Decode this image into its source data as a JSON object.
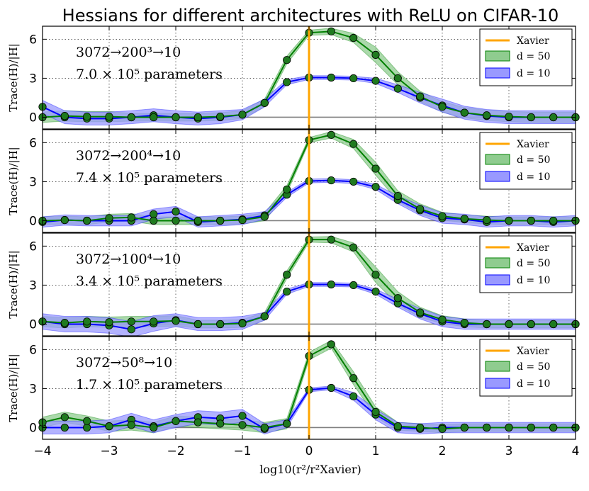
{
  "chart_data": {
    "type": "line",
    "title": "Hessians for different architectures with ReLU on CIFAR-10",
    "xlabel": "log10(r²/r²Xavier)",
    "ylabel": "Trace(H)/|H|",
    "xlim": [
      -4,
      4
    ],
    "ylim": [
      -0.9,
      7
    ],
    "xticks": [
      "−4",
      "−3",
      "−2",
      "−1",
      "0",
      "1",
      "2",
      "3",
      "4"
    ],
    "yticks": [
      "0",
      "3",
      "6"
    ],
    "grid": true,
    "legend_position": "top-right",
    "legend": {
      "xavier": "Xavier",
      "d50": "d = 50",
      "d10": "d = 10"
    },
    "colors": {
      "d50_line": "#008000",
      "d50_fill": "#8fcc8f",
      "d50_marker": "#1f7a1f",
      "d10_line": "#0000ff",
      "d10_fill": "#9999ff",
      "xavier": "#ffa500",
      "zero_line": "#808080"
    },
    "x": [
      -4,
      -3.667,
      -3.333,
      -3,
      -2.667,
      -2.333,
      -2,
      -1.667,
      -1.333,
      -1,
      -0.667,
      -0.333,
      0,
      0.333,
      0.667,
      1,
      1.333,
      1.667,
      2,
      2.333,
      2.667,
      3,
      3.333,
      3.667,
      4
    ],
    "panels": [
      {
        "arch": "3072→200³→10",
        "params": "7.0 × 10⁵ parameters",
        "series": [
          {
            "name": "d = 50",
            "values": [
              0,
              0.1,
              0.05,
              0.05,
              0,
              0,
              0,
              0,
              0.05,
              0.2,
              1.1,
              4.4,
              6.5,
              6.6,
              6.1,
              4.8,
              3.0,
              1.6,
              0.8,
              0.35,
              0.15,
              0.05,
              0,
              0,
              0
            ],
            "band": [
              0.4,
              0.4,
              0.4,
              0.4,
              0.3,
              0.3,
              0.3,
              0.3,
              0.3,
              0.3,
              0.3,
              0.3,
              0.2,
              0.25,
              0.35,
              0.6,
              0.5,
              0.4,
              0.4,
              0.4,
              0.4,
              0.4,
              0.4,
              0.4,
              0.4
            ]
          },
          {
            "name": "d = 10",
            "values": [
              0.8,
              0,
              -0.1,
              -0.1,
              0,
              0.15,
              0,
              -0.1,
              0,
              0.2,
              1.1,
              2.7,
              3.05,
              3.05,
              3.0,
              2.8,
              2.2,
              1.5,
              0.9,
              0.35,
              0.1,
              0,
              0,
              0,
              0
            ],
            "band": [
              0.5,
              0.5,
              0.5,
              0.5,
              0.5,
              0.5,
              0.5,
              0.5,
              0.5,
              0.4,
              0.3,
              0.2,
              0.15,
              0.15,
              0.15,
              0.2,
              0.3,
              0.4,
              0.5,
              0.5,
              0.5,
              0.5,
              0.5,
              0.5,
              0.5
            ]
          }
        ]
      },
      {
        "arch": "3072→200⁴→10",
        "params": "7.4 × 10⁵ parameters",
        "series": [
          {
            "name": "d = 50",
            "values": [
              0,
              0.05,
              0,
              0.2,
              0.25,
              0,
              0,
              0,
              0,
              0.05,
              0.3,
              2.4,
              6.2,
              6.6,
              5.9,
              4.0,
              1.9,
              0.9,
              0.35,
              0.15,
              0.05,
              0,
              0,
              0,
              0
            ],
            "band": [
              0.3,
              0.3,
              0.3,
              0.3,
              0.3,
              0.3,
              0.3,
              0.3,
              0.3,
              0.3,
              0.3,
              0.3,
              0.2,
              0.25,
              0.35,
              0.5,
              0.4,
              0.4,
              0.3,
              0.3,
              0.3,
              0.3,
              0.3,
              0.3,
              0.3
            ]
          },
          {
            "name": "d = 10",
            "values": [
              -0.1,
              0.05,
              0,
              0,
              0,
              0.5,
              0.7,
              -0.1,
              0,
              0.1,
              0.4,
              2.0,
              3.05,
              3.1,
              3.0,
              2.6,
              1.6,
              0.8,
              0.2,
              0.1,
              -0.1,
              0,
              0,
              -0.1,
              0
            ],
            "band": [
              0.4,
              0.4,
              0.4,
              0.4,
              0.4,
              0.4,
              0.4,
              0.4,
              0.4,
              0.4,
              0.3,
              0.2,
              0.15,
              0.15,
              0.15,
              0.2,
              0.3,
              0.4,
              0.4,
              0.4,
              0.4,
              0.4,
              0.4,
              0.4,
              0.4
            ]
          }
        ]
      },
      {
        "arch": "3072→100⁴→10",
        "params": "3.4 × 10⁵ parameters",
        "series": [
          {
            "name": "d = 50",
            "values": [
              0.2,
              0.1,
              0.2,
              0.15,
              0.2,
              0.2,
              0.25,
              0,
              0,
              0.05,
              0.6,
              3.8,
              6.5,
              6.5,
              5.9,
              3.8,
              2.0,
              0.9,
              0.35,
              0.1,
              0,
              0,
              0,
              0,
              0
            ],
            "band": [
              0.4,
              0.4,
              0.4,
              0.4,
              0.4,
              0.4,
              0.4,
              0.3,
              0.3,
              0.3,
              0.3,
              0.3,
              0.2,
              0.25,
              0.35,
              0.6,
              0.5,
              0.4,
              0.3,
              0.3,
              0.3,
              0.3,
              0.3,
              0.3,
              0.3
            ]
          },
          {
            "name": "d = 10",
            "values": [
              0.2,
              0,
              0,
              -0.1,
              -0.4,
              0.05,
              0.3,
              0,
              0,
              0.1,
              0.6,
              2.5,
              3.05,
              3.05,
              3.0,
              2.5,
              1.6,
              0.8,
              0.2,
              0,
              0,
              0,
              0,
              0,
              0
            ],
            "band": [
              0.6,
              0.6,
              0.6,
              0.6,
              0.6,
              0.6,
              0.5,
              0.5,
              0.5,
              0.5,
              0.3,
              0.2,
              0.15,
              0.15,
              0.15,
              0.2,
              0.3,
              0.4,
              0.4,
              0.4,
              0.4,
              0.4,
              0.4,
              0.4,
              0.4
            ]
          }
        ]
      },
      {
        "arch": "3072→50⁸→10",
        "params": "1.7 × 10⁵ parameters",
        "series": [
          {
            "name": "d = 50",
            "values": [
              0.4,
              0.8,
              0.5,
              0.1,
              0.2,
              0,
              0.5,
              0.4,
              0.3,
              0.2,
              0,
              0.3,
              5.5,
              6.4,
              3.8,
              1.2,
              0.1,
              0,
              -0.1,
              0,
              0,
              0,
              0,
              0,
              0
            ],
            "band": [
              0.4,
              0.4,
              0.4,
              0.4,
              0.4,
              0.4,
              0.4,
              0.4,
              0.4,
              0.4,
              0.4,
              0.4,
              0.3,
              0.3,
              0.5,
              0.4,
              0.3,
              0.3,
              0.3,
              0.3,
              0.3,
              0.3,
              0.3,
              0.3,
              0.3
            ]
          },
          {
            "name": "d = 10",
            "values": [
              0,
              0,
              0,
              0.1,
              0.6,
              0.1,
              0.5,
              0.8,
              0.7,
              0.9,
              -0.1,
              0.3,
              2.9,
              3.05,
              2.4,
              1.0,
              0,
              -0.1,
              0,
              0,
              0,
              0,
              0,
              0,
              0
            ],
            "band": [
              0.5,
              0.5,
              0.5,
              0.5,
              0.5,
              0.5,
              0.5,
              0.5,
              0.5,
              0.5,
              0.4,
              0.3,
              0.15,
              0.15,
              0.3,
              0.4,
              0.4,
              0.4,
              0.4,
              0.4,
              0.4,
              0.4,
              0.4,
              0.4,
              0.4
            ]
          }
        ]
      }
    ]
  }
}
